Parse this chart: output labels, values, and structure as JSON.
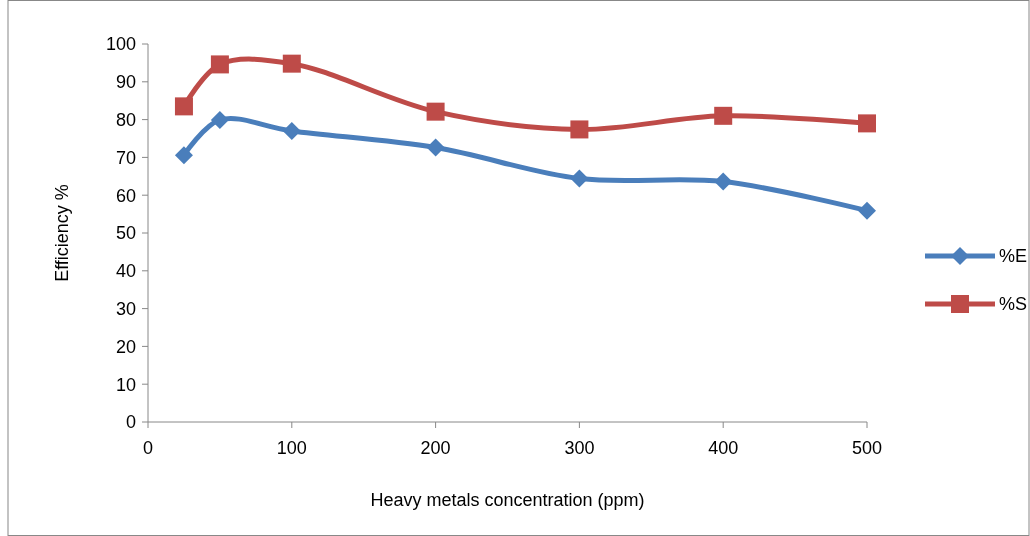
{
  "chart_data": {
    "type": "line",
    "xlabel": "Heavy metals concentration (ppm)",
    "ylabel": "Efficiency %",
    "x": [
      25,
      50,
      100,
      200,
      300,
      400,
      500
    ],
    "series": [
      {
        "name": "%E",
        "color": "#4a7ebb",
        "marker": "diamond",
        "values": [
          70.6,
          79.9,
          77,
          72.6,
          64.4,
          63.6,
          55.9
        ]
      },
      {
        "name": "%S",
        "color": "#be4b48",
        "marker": "square",
        "values": [
          83.5,
          94.6,
          94.8,
          82.1,
          77.4,
          81.0,
          79.0
        ]
      }
    ],
    "xlim": [
      0,
      500
    ],
    "xticks": [
      0,
      100,
      200,
      300,
      400,
      500
    ],
    "ylim": [
      0,
      100
    ],
    "yticks": [
      0,
      10,
      20,
      30,
      40,
      50,
      60,
      70,
      80,
      90,
      100
    ],
    "legend": "right",
    "grid": false
  }
}
